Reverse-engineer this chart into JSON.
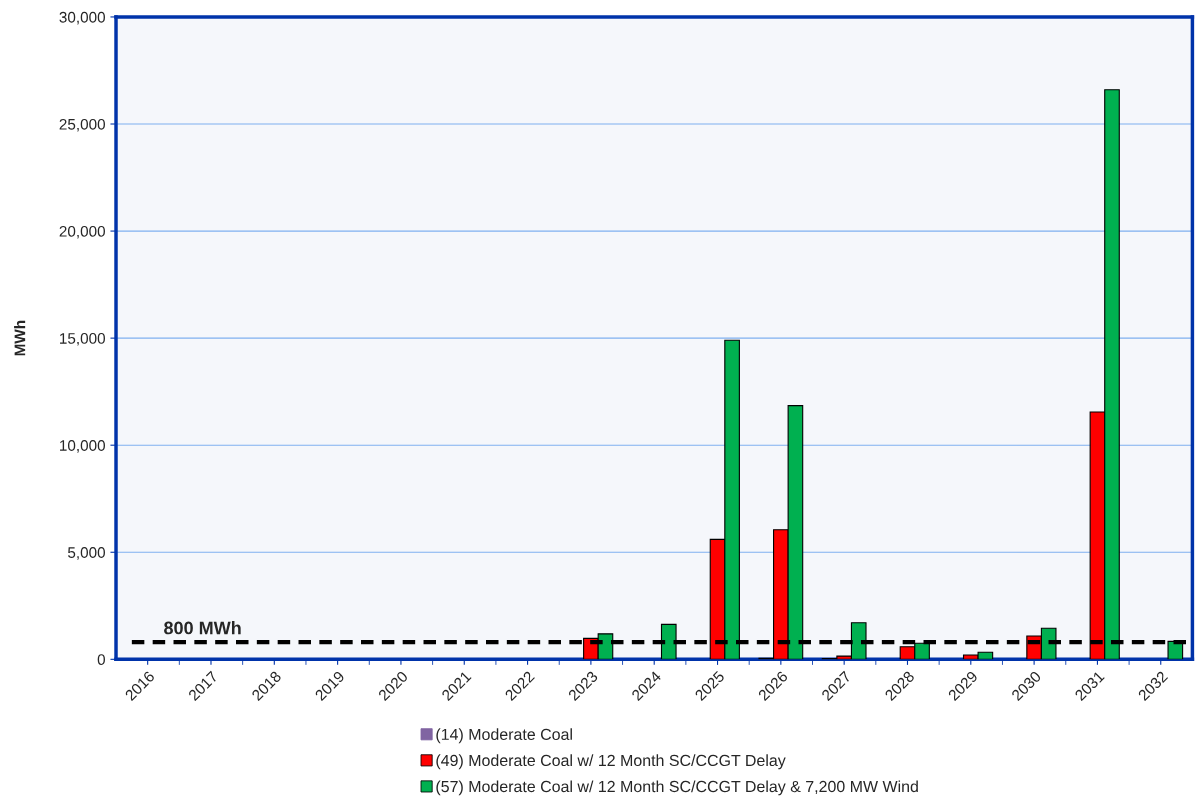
{
  "chart_data": {
    "type": "bar",
    "ylabel": "MWh",
    "categories": [
      "2016",
      "2017",
      "2018",
      "2019",
      "2020",
      "2021",
      "2022",
      "2023",
      "2024",
      "2025",
      "2026",
      "2027",
      "2028",
      "2029",
      "2030",
      "2031",
      "2032"
    ],
    "series": [
      {
        "name": "(14) Moderate Coal",
        "color": "#8064a2",
        "values": [
          null,
          null,
          null,
          null,
          null,
          null,
          null,
          null,
          null,
          null,
          50,
          40,
          null,
          null,
          null,
          null,
          null
        ]
      },
      {
        "name": "(49) Moderate Coal w/ 12 Month SC/CCGT Delay",
        "color": "#ff0000",
        "values": [
          null,
          null,
          null,
          null,
          null,
          null,
          null,
          980,
          null,
          5600,
          6050,
          150,
          590,
          200,
          1090,
          11550,
          null
        ]
      },
      {
        "name": "(57) Moderate Coal w/ 12 Month SC/CCGT Delay & 7,200 MW Wind",
        "color": "#00b050",
        "values": [
          null,
          null,
          null,
          null,
          null,
          null,
          null,
          1190,
          1630,
          14900,
          11850,
          1710,
          750,
          330,
          1450,
          26600,
          840
        ]
      }
    ],
    "ylim": [
      0,
      30000
    ],
    "yticks": [
      {
        "value": 0,
        "label": "0"
      },
      {
        "value": 5000,
        "label": "5,000"
      },
      {
        "value": 10000,
        "label": "10,000"
      },
      {
        "value": 15000,
        "label": "15,000"
      },
      {
        "value": 20000,
        "label": "20,000"
      },
      {
        "value": 25000,
        "label": "25,000"
      },
      {
        "value": 30000,
        "label": "30,000"
      }
    ],
    "ref_lines": [
      {
        "axis": "y",
        "value": 800,
        "label": "800 MWh",
        "color": "#000000",
        "line_style": "dashed"
      }
    ],
    "grid": "y",
    "legend": "bottom"
  }
}
